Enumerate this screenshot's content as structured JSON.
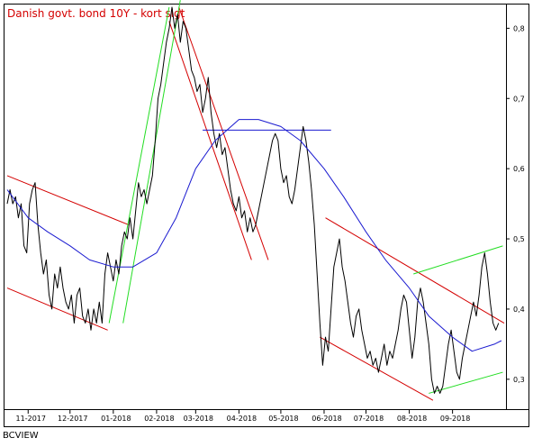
{
  "footer": "BCVIEW",
  "chart_data": {
    "type": "line",
    "title": "Danish govt. bond 10Y - kort sigt",
    "xlabel": "",
    "ylabel": "",
    "ylim": [
      0.26,
      0.83
    ],
    "x_range": [
      "2017-10-17",
      "2018-10-08"
    ],
    "x_ticks": [
      {
        "label": "11-2017",
        "date": "2017-11-01"
      },
      {
        "label": "12-2017",
        "date": "2017-12-01"
      },
      {
        "label": "01-2018",
        "date": "2018-01-01"
      },
      {
        "label": "02-2018",
        "date": "2018-02-01"
      },
      {
        "label": "03-2018",
        "date": "2018-03-01"
      },
      {
        "label": "04-2018",
        "date": "2018-04-01"
      },
      {
        "label": "05-2018",
        "date": "2018-05-01"
      },
      {
        "label": "06-2018",
        "date": "2018-06-01"
      },
      {
        "label": "07-2018",
        "date": "2018-07-01"
      },
      {
        "label": "08-2018",
        "date": "2018-08-01"
      },
      {
        "label": "09-2018",
        "date": "2018-09-01"
      }
    ],
    "y_ticks": [
      0.3,
      0.4,
      0.5,
      0.6,
      0.7,
      0.8
    ],
    "y_tick_labels": [
      "0,3",
      "0,4",
      "0,5",
      "0,6",
      "0,7",
      "0,8"
    ],
    "grid": false,
    "series": [
      {
        "color": "#000000",
        "points": [
          [
            "2017-10-17",
            0.55
          ],
          [
            "2017-10-19",
            0.57
          ],
          [
            "2017-10-21",
            0.55
          ],
          [
            "2017-10-23",
            0.56
          ],
          [
            "2017-10-25",
            0.53
          ],
          [
            "2017-10-27",
            0.55
          ],
          [
            "2017-10-29",
            0.49
          ],
          [
            "2017-10-31",
            0.48
          ],
          [
            "2017-11-02",
            0.55
          ],
          [
            "2017-11-04",
            0.57
          ],
          [
            "2017-11-06",
            0.58
          ],
          [
            "2017-11-08",
            0.52
          ],
          [
            "2017-11-10",
            0.48
          ],
          [
            "2017-11-12",
            0.45
          ],
          [
            "2017-11-14",
            0.47
          ],
          [
            "2017-11-16",
            0.42
          ],
          [
            "2017-11-18",
            0.4
          ],
          [
            "2017-11-20",
            0.45
          ],
          [
            "2017-11-22",
            0.43
          ],
          [
            "2017-11-24",
            0.46
          ],
          [
            "2017-11-26",
            0.43
          ],
          [
            "2017-11-28",
            0.41
          ],
          [
            "2017-11-30",
            0.4
          ],
          [
            "2017-12-02",
            0.42
          ],
          [
            "2017-12-04",
            0.38
          ],
          [
            "2017-12-06",
            0.42
          ],
          [
            "2017-12-08",
            0.43
          ],
          [
            "2017-12-10",
            0.39
          ],
          [
            "2017-12-12",
            0.38
          ],
          [
            "2017-12-14",
            0.4
          ],
          [
            "2017-12-16",
            0.37
          ],
          [
            "2017-12-18",
            0.4
          ],
          [
            "2017-12-20",
            0.38
          ],
          [
            "2017-12-22",
            0.41
          ],
          [
            "2017-12-24",
            0.38
          ],
          [
            "2017-12-26",
            0.45
          ],
          [
            "2017-12-28",
            0.48
          ],
          [
            "2017-12-30",
            0.46
          ],
          [
            "2018-01-01",
            0.44
          ],
          [
            "2018-01-03",
            0.47
          ],
          [
            "2018-01-05",
            0.45
          ],
          [
            "2018-01-07",
            0.49
          ],
          [
            "2018-01-09",
            0.51
          ],
          [
            "2018-01-11",
            0.5
          ],
          [
            "2018-01-13",
            0.53
          ],
          [
            "2018-01-15",
            0.5
          ],
          [
            "2018-01-17",
            0.54
          ],
          [
            "2018-01-19",
            0.58
          ],
          [
            "2018-01-21",
            0.56
          ],
          [
            "2018-01-23",
            0.57
          ],
          [
            "2018-01-25",
            0.55
          ],
          [
            "2018-01-27",
            0.57
          ],
          [
            "2018-01-29",
            0.59
          ],
          [
            "2018-01-31",
            0.64
          ],
          [
            "2018-02-02",
            0.7
          ],
          [
            "2018-02-04",
            0.72
          ],
          [
            "2018-02-06",
            0.75
          ],
          [
            "2018-02-08",
            0.78
          ],
          [
            "2018-02-10",
            0.8
          ],
          [
            "2018-02-12",
            0.83
          ],
          [
            "2018-02-14",
            0.8
          ],
          [
            "2018-02-16",
            0.82
          ],
          [
            "2018-02-18",
            0.78
          ],
          [
            "2018-02-20",
            0.81
          ],
          [
            "2018-02-22",
            0.8
          ],
          [
            "2018-02-24",
            0.77
          ],
          [
            "2018-02-26",
            0.74
          ],
          [
            "2018-02-28",
            0.73
          ],
          [
            "2018-03-02",
            0.71
          ],
          [
            "2018-03-04",
            0.72
          ],
          [
            "2018-03-06",
            0.68
          ],
          [
            "2018-03-08",
            0.7
          ],
          [
            "2018-03-10",
            0.73
          ],
          [
            "2018-03-12",
            0.68
          ],
          [
            "2018-03-14",
            0.65
          ],
          [
            "2018-03-16",
            0.63
          ],
          [
            "2018-03-18",
            0.65
          ],
          [
            "2018-03-20",
            0.62
          ],
          [
            "2018-03-22",
            0.63
          ],
          [
            "2018-03-24",
            0.6
          ],
          [
            "2018-03-26",
            0.57
          ],
          [
            "2018-03-28",
            0.55
          ],
          [
            "2018-03-30",
            0.54
          ],
          [
            "2018-04-01",
            0.56
          ],
          [
            "2018-04-03",
            0.53
          ],
          [
            "2018-04-05",
            0.54
          ],
          [
            "2018-04-07",
            0.51
          ],
          [
            "2018-04-09",
            0.53
          ],
          [
            "2018-04-11",
            0.51
          ],
          [
            "2018-04-13",
            0.52
          ],
          [
            "2018-04-15",
            0.54
          ],
          [
            "2018-04-17",
            0.56
          ],
          [
            "2018-04-19",
            0.58
          ],
          [
            "2018-04-21",
            0.6
          ],
          [
            "2018-04-23",
            0.62
          ],
          [
            "2018-04-25",
            0.64
          ],
          [
            "2018-04-27",
            0.65
          ],
          [
            "2018-04-29",
            0.64
          ],
          [
            "2018-05-01",
            0.6
          ],
          [
            "2018-05-03",
            0.58
          ],
          [
            "2018-05-05",
            0.59
          ],
          [
            "2018-05-07",
            0.56
          ],
          [
            "2018-05-09",
            0.55
          ],
          [
            "2018-05-11",
            0.57
          ],
          [
            "2018-05-13",
            0.6
          ],
          [
            "2018-05-15",
            0.63
          ],
          [
            "2018-05-17",
            0.66
          ],
          [
            "2018-05-19",
            0.64
          ],
          [
            "2018-05-21",
            0.61
          ],
          [
            "2018-05-23",
            0.57
          ],
          [
            "2018-05-25",
            0.52
          ],
          [
            "2018-05-27",
            0.45
          ],
          [
            "2018-05-29",
            0.38
          ],
          [
            "2018-05-31",
            0.32
          ],
          [
            "2018-06-02",
            0.36
          ],
          [
            "2018-06-04",
            0.34
          ],
          [
            "2018-06-06",
            0.4
          ],
          [
            "2018-06-08",
            0.46
          ],
          [
            "2018-06-10",
            0.48
          ],
          [
            "2018-06-12",
            0.5
          ],
          [
            "2018-06-14",
            0.46
          ],
          [
            "2018-06-16",
            0.44
          ],
          [
            "2018-06-18",
            0.41
          ],
          [
            "2018-06-20",
            0.38
          ],
          [
            "2018-06-22",
            0.36
          ],
          [
            "2018-06-24",
            0.39
          ],
          [
            "2018-06-26",
            0.4
          ],
          [
            "2018-06-28",
            0.37
          ],
          [
            "2018-06-30",
            0.35
          ],
          [
            "2018-07-02",
            0.33
          ],
          [
            "2018-07-04",
            0.34
          ],
          [
            "2018-07-06",
            0.32
          ],
          [
            "2018-07-08",
            0.33
          ],
          [
            "2018-07-10",
            0.31
          ],
          [
            "2018-07-12",
            0.33
          ],
          [
            "2018-07-14",
            0.35
          ],
          [
            "2018-07-16",
            0.32
          ],
          [
            "2018-07-18",
            0.34
          ],
          [
            "2018-07-20",
            0.33
          ],
          [
            "2018-07-22",
            0.35
          ],
          [
            "2018-07-24",
            0.37
          ],
          [
            "2018-07-26",
            0.4
          ],
          [
            "2018-07-28",
            0.42
          ],
          [
            "2018-07-30",
            0.41
          ],
          [
            "2018-08-01",
            0.37
          ],
          [
            "2018-08-03",
            0.33
          ],
          [
            "2018-08-05",
            0.36
          ],
          [
            "2018-08-07",
            0.41
          ],
          [
            "2018-08-09",
            0.43
          ],
          [
            "2018-08-11",
            0.41
          ],
          [
            "2018-08-13",
            0.38
          ],
          [
            "2018-08-15",
            0.35
          ],
          [
            "2018-08-17",
            0.3
          ],
          [
            "2018-08-19",
            0.28
          ],
          [
            "2018-08-21",
            0.29
          ],
          [
            "2018-08-23",
            0.28
          ],
          [
            "2018-08-25",
            0.29
          ],
          [
            "2018-08-27",
            0.32
          ],
          [
            "2018-08-29",
            0.35
          ],
          [
            "2018-08-31",
            0.37
          ],
          [
            "2018-09-02",
            0.34
          ],
          [
            "2018-09-04",
            0.31
          ],
          [
            "2018-09-06",
            0.3
          ],
          [
            "2018-09-08",
            0.33
          ],
          [
            "2018-09-10",
            0.35
          ],
          [
            "2018-09-12",
            0.37
          ],
          [
            "2018-09-14",
            0.39
          ],
          [
            "2018-09-16",
            0.41
          ],
          [
            "2018-09-18",
            0.39
          ],
          [
            "2018-09-20",
            0.42
          ],
          [
            "2018-09-22",
            0.46
          ],
          [
            "2018-09-24",
            0.48
          ],
          [
            "2018-09-26",
            0.45
          ],
          [
            "2018-09-28",
            0.41
          ],
          [
            "2018-09-30",
            0.38
          ],
          [
            "2018-10-02",
            0.37
          ],
          [
            "2018-10-04",
            0.38
          ]
        ]
      },
      {
        "color": "#1a1ad0",
        "points": [
          [
            "2017-10-17",
            0.57
          ],
          [
            "2017-11-01",
            0.53
          ],
          [
            "2017-11-15",
            0.51
          ],
          [
            "2017-12-01",
            0.49
          ],
          [
            "2017-12-15",
            0.47
          ],
          [
            "2018-01-01",
            0.46
          ],
          [
            "2018-01-15",
            0.46
          ],
          [
            "2018-02-01",
            0.48
          ],
          [
            "2018-02-15",
            0.53
          ],
          [
            "2018-03-01",
            0.6
          ],
          [
            "2018-03-15",
            0.64
          ],
          [
            "2018-04-01",
            0.67
          ],
          [
            "2018-04-15",
            0.67
          ],
          [
            "2018-05-01",
            0.66
          ],
          [
            "2018-05-15",
            0.64
          ],
          [
            "2018-06-01",
            0.6
          ],
          [
            "2018-06-15",
            0.56
          ],
          [
            "2018-07-01",
            0.51
          ],
          [
            "2018-07-15",
            0.47
          ],
          [
            "2018-08-01",
            0.43
          ],
          [
            "2018-08-15",
            0.39
          ],
          [
            "2018-09-01",
            0.36
          ],
          [
            "2018-09-15",
            0.34
          ],
          [
            "2018-10-01",
            0.35
          ],
          [
            "2018-10-06",
            0.355
          ]
        ]
      }
    ],
    "trendlines": [
      {
        "color": "#d40000",
        "from": [
          "2017-10-17",
          0.59
        ],
        "to": [
          "2018-01-12",
          0.52
        ]
      },
      {
        "color": "#d40000",
        "from": [
          "2017-10-17",
          0.43
        ],
        "to": [
          "2017-12-28",
          0.37
        ]
      },
      {
        "color": "#d40000",
        "from": [
          "2018-02-17",
          0.83
        ],
        "to": [
          "2018-04-22",
          0.47
        ]
      },
      {
        "color": "#d40000",
        "from": [
          "2018-02-10",
          0.81
        ],
        "to": [
          "2018-04-10",
          0.47
        ]
      },
      {
        "color": "#d40000",
        "from": [
          "2018-06-02",
          0.53
        ],
        "to": [
          "2018-10-08",
          0.38
        ]
      },
      {
        "color": "#d40000",
        "from": [
          "2018-05-29",
          0.36
        ],
        "to": [
          "2018-08-18",
          0.27
        ]
      },
      {
        "color": "#22dd22",
        "from": [
          "2018-01-08",
          0.38
        ],
        "to": [
          "2018-02-18",
          0.84
        ]
      },
      {
        "color": "#22dd22",
        "from": [
          "2017-12-29",
          0.38
        ],
        "to": [
          "2018-02-10",
          0.83
        ]
      },
      {
        "color": "#22dd22",
        "from": [
          "2018-08-04",
          0.45
        ],
        "to": [
          "2018-10-07",
          0.49
        ]
      },
      {
        "color": "#22dd22",
        "from": [
          "2018-08-15",
          0.28
        ],
        "to": [
          "2018-10-07",
          0.31
        ]
      },
      {
        "color": "#1a1ad0",
        "from": [
          "2018-03-06",
          0.655
        ],
        "to": [
          "2018-06-06",
          0.655
        ]
      }
    ]
  }
}
